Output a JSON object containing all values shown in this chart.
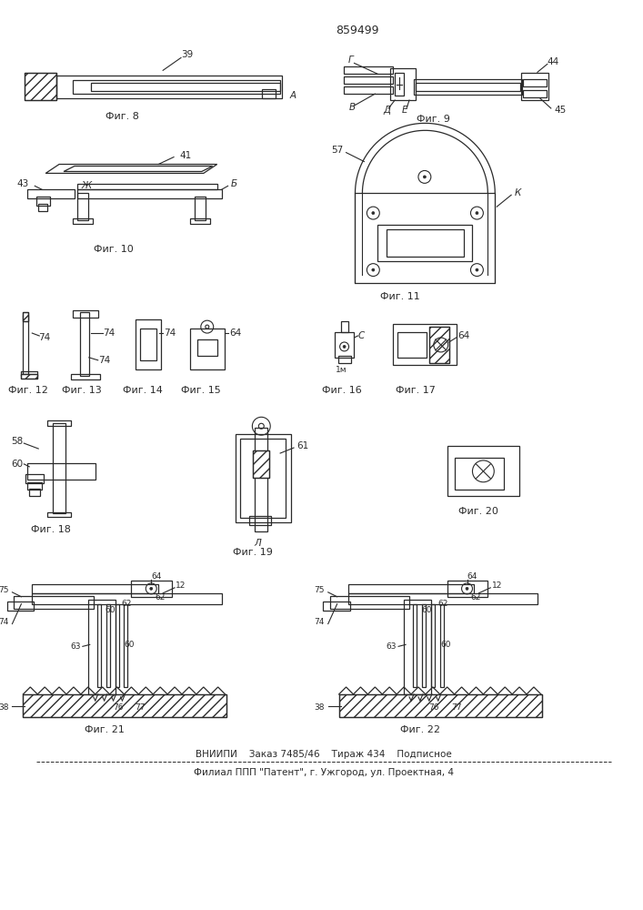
{
  "title_number": "859499",
  "background_color": "#ffffff",
  "line_color": "#2a2a2a",
  "footer_line1": "ВНИИПИ    Заказ 7485/46    Тираж 434    Подписное",
  "footer_line2": "Филиал ППП \"Патент\", г. Ужгород, ул. Проектная, 4",
  "fig_labels": {
    "fig8": "Фиг. 8",
    "fig9": "Фиг. 9",
    "fig10": "Фиг. 10",
    "fig11": "Фиг. 11",
    "fig12": "Фиг. 12",
    "fig13": "Фиг. 13",
    "fig14": "Фиг. 14",
    "fig15": "Фиг. 15",
    "fig16": "Фиг. 16",
    "fig17": "Фиг. 17",
    "fig18": "Фиг. 18",
    "fig19": "Фиг. 19",
    "fig20": "Фиг. 20",
    "fig21": "Фиг. 21",
    "fig22": "Фиг. 22"
  }
}
